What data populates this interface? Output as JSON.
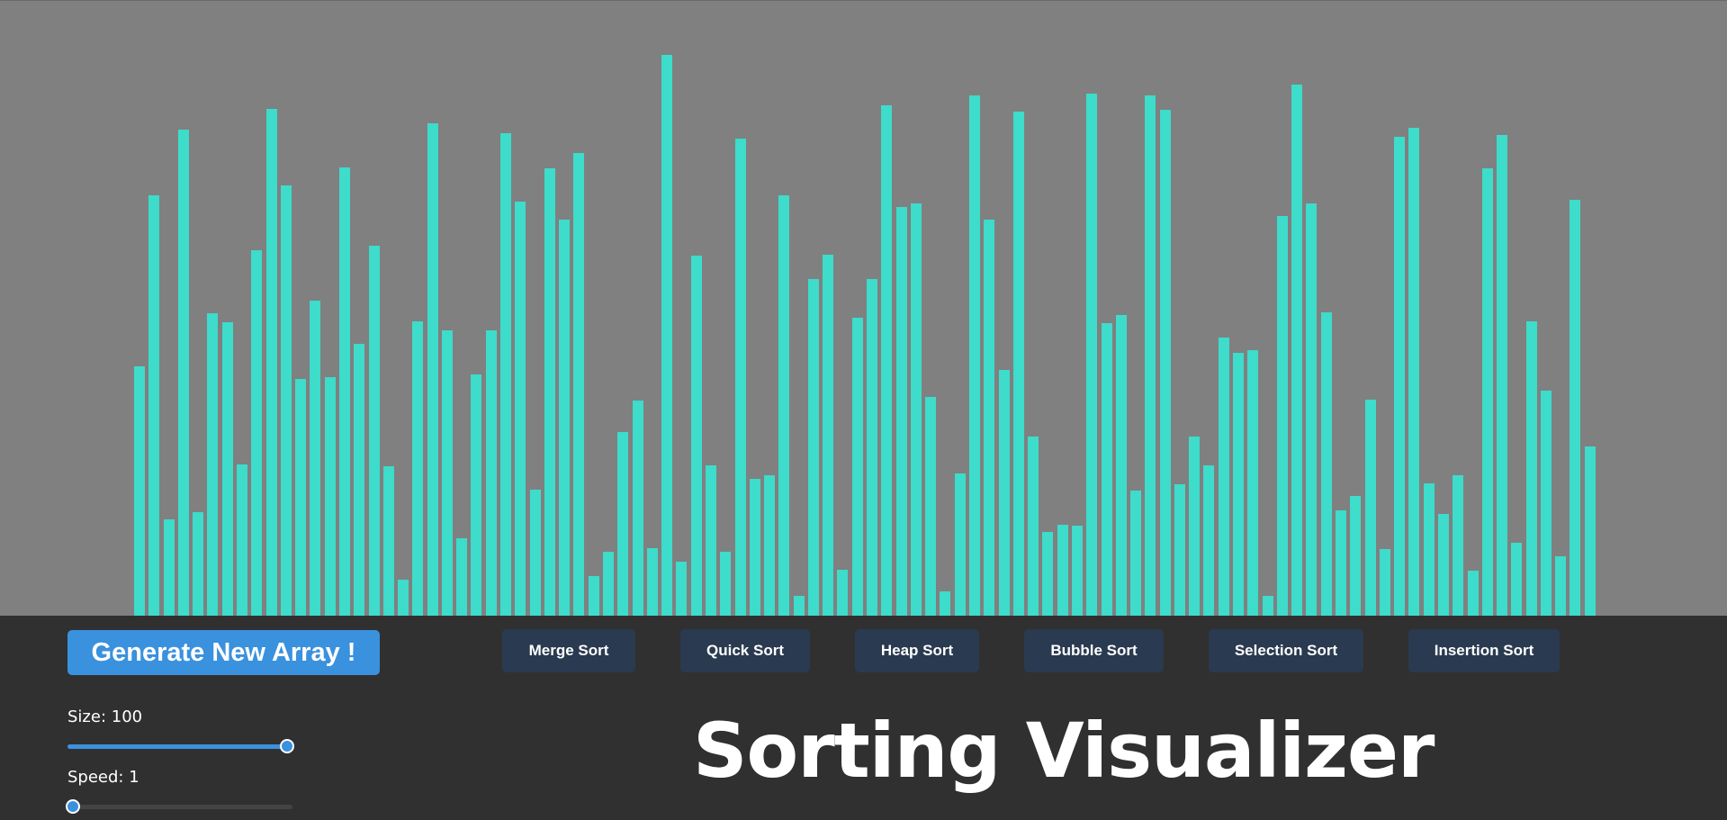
{
  "app": {
    "title": "Sorting Visualizer"
  },
  "colors": {
    "bar": "#3ddccb",
    "bars_background": "#808080",
    "panel_background": "#303030",
    "accent": "#3a91dd",
    "algo_button": "#2a3a50"
  },
  "controls": {
    "generate_label": "Generate New Array !",
    "size_label": "Size: 100",
    "size_fraction": 1.0,
    "speed_label": "Speed: 1",
    "speed_fraction": 0.0
  },
  "algorithms": [
    {
      "label": "Merge Sort"
    },
    {
      "label": "Quick Sort"
    },
    {
      "label": "Heap Sort"
    },
    {
      "label": "Bubble Sort"
    },
    {
      "label": "Selection Sort"
    },
    {
      "label": "Insertion Sort"
    }
  ],
  "array_values": [
    277,
    467,
    107,
    540,
    115,
    336,
    326,
    168,
    406,
    563,
    478,
    263,
    350,
    265,
    498,
    302,
    411,
    166,
    40,
    327,
    547,
    317,
    86,
    268,
    317,
    536,
    460,
    140,
    497,
    440,
    514,
    44,
    71,
    204,
    239,
    75,
    623,
    60,
    400,
    167,
    71,
    530,
    152,
    156,
    467,
    22,
    374,
    401,
    51,
    331,
    374,
    567,
    454,
    458,
    243,
    27,
    158,
    578,
    440,
    273,
    560,
    199,
    93,
    101,
    100,
    580,
    325,
    334,
    139,
    578,
    562,
    146,
    199,
    167,
    309,
    292,
    295,
    22,
    444,
    590,
    458,
    337,
    117,
    133,
    240,
    74,
    532,
    542,
    147,
    113,
    156,
    50,
    497,
    534,
    81,
    327,
    250,
    66,
    462,
    188
  ]
}
